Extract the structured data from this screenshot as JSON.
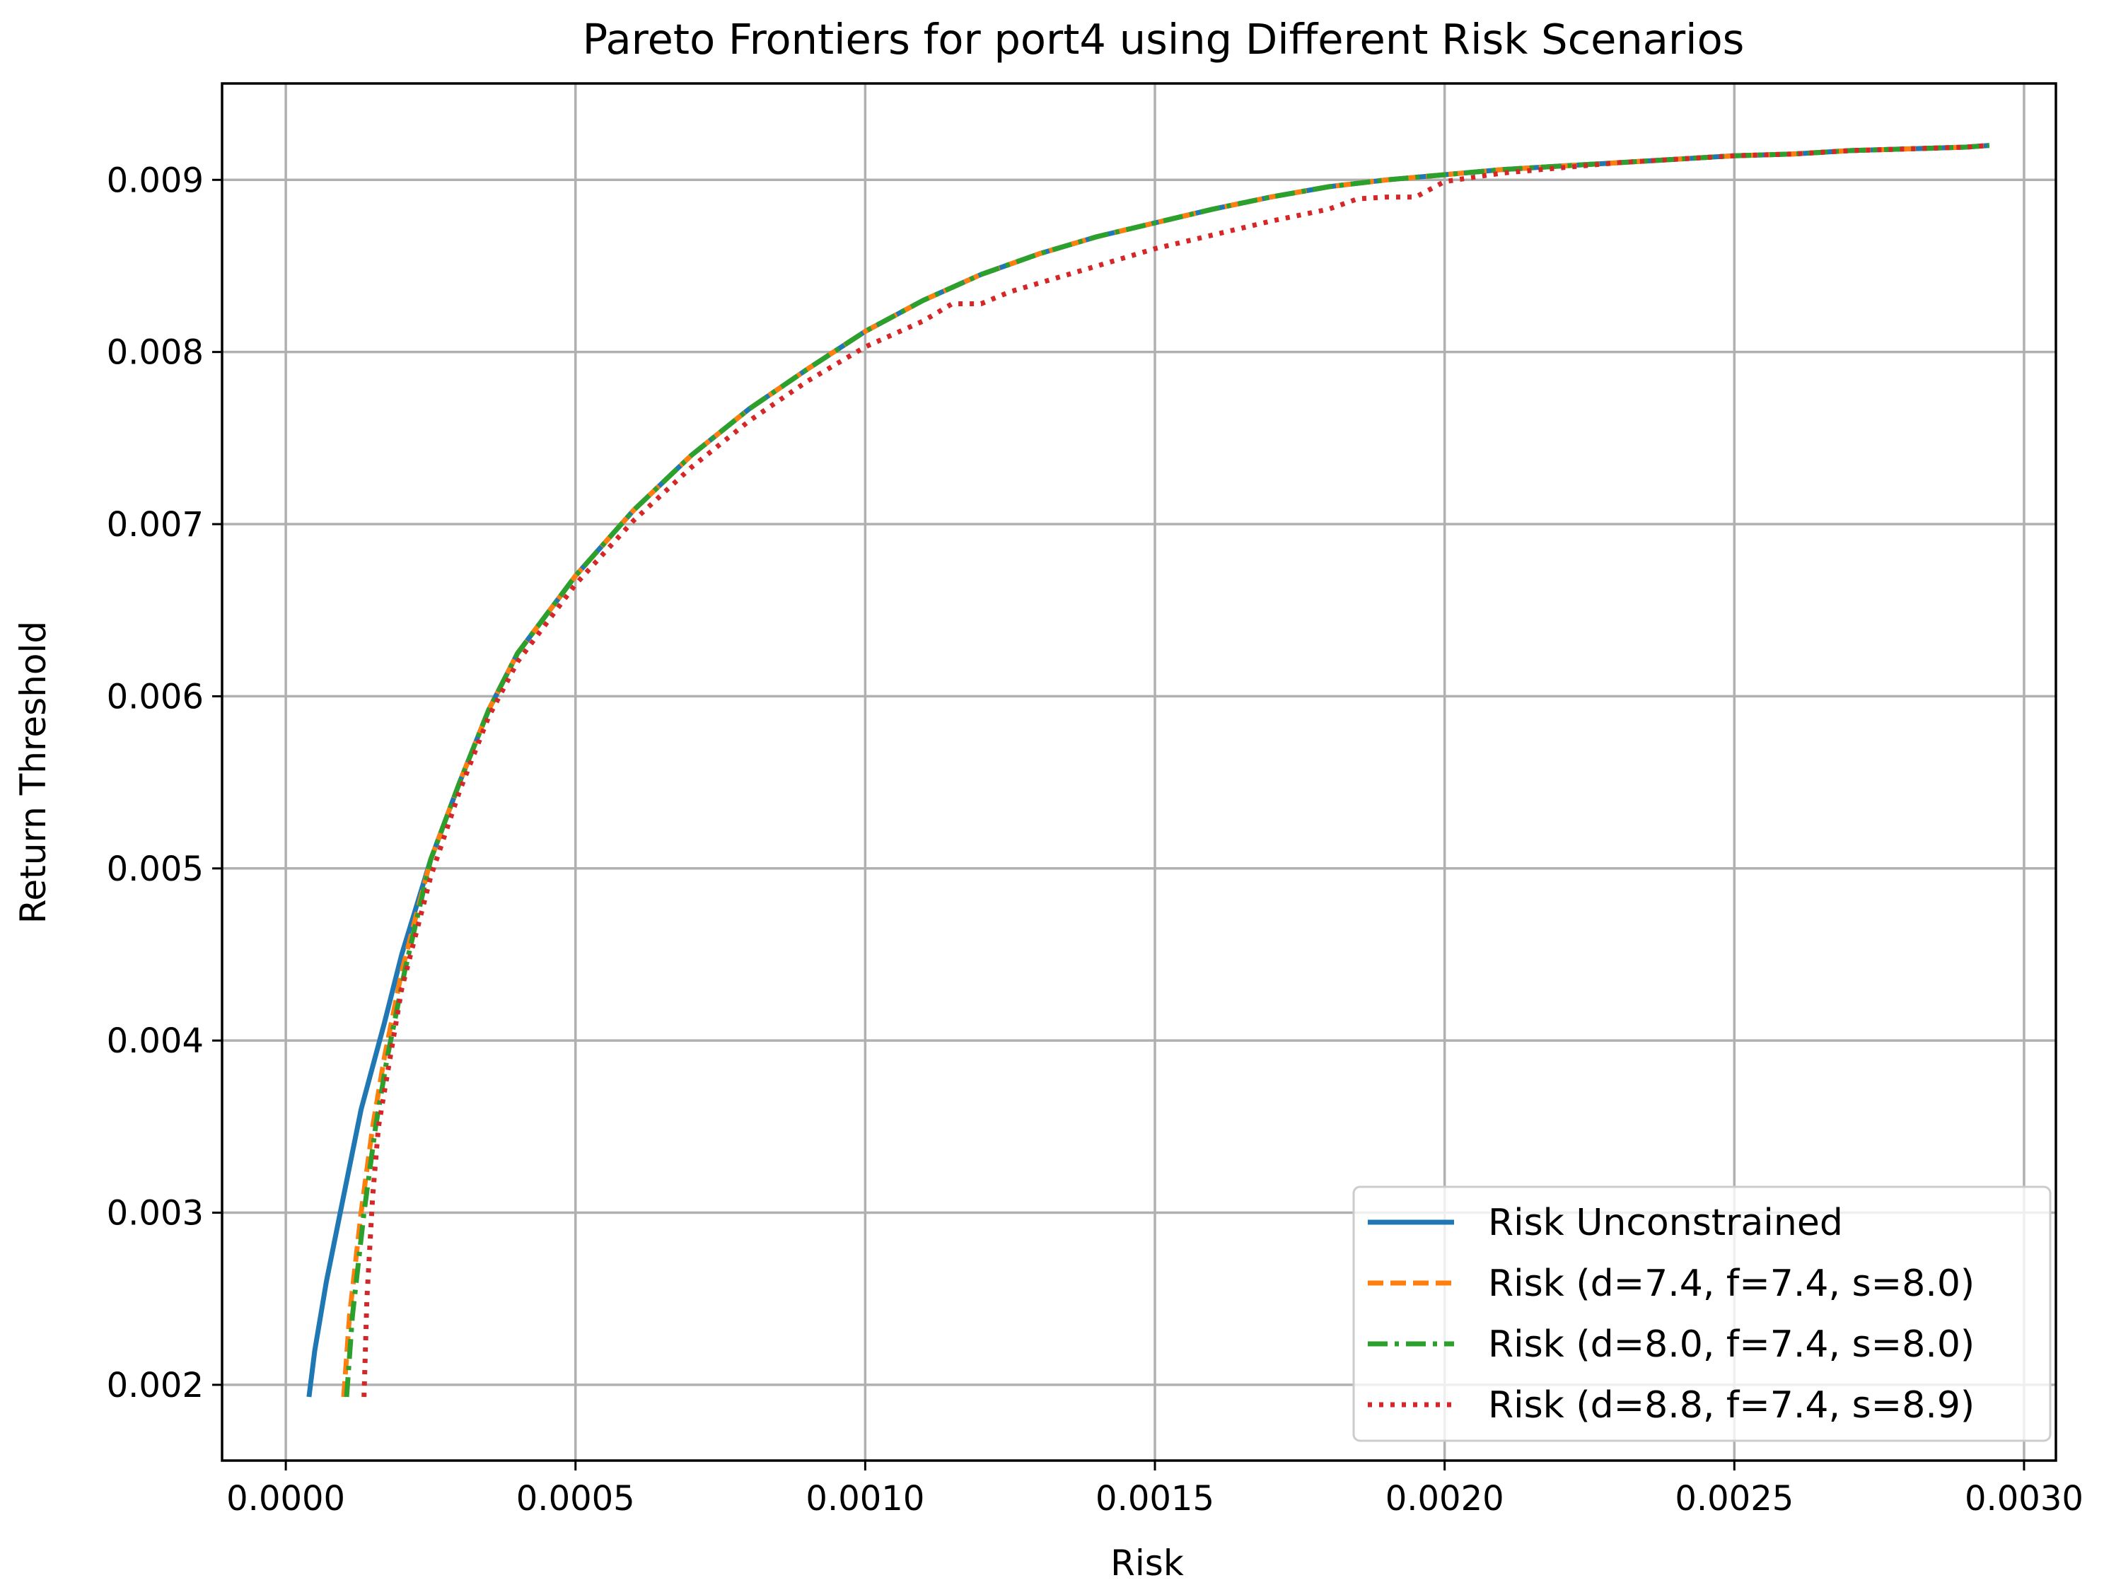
{
  "chart_data": {
    "type": "line",
    "title": "Pareto Frontiers for port4 using Different Risk Scenarios",
    "xlabel": "Risk",
    "ylabel": "Return Threshold",
    "xlim": [
      -0.00011,
      0.003055
    ],
    "ylim": [
      0.00156,
      0.00956
    ],
    "x_ticks": [
      0.0,
      0.0005,
      0.001,
      0.0015,
      0.002,
      0.0025,
      0.003
    ],
    "x_tick_labels": [
      "0.0000",
      "0.0005",
      "0.0010",
      "0.0015",
      "0.0020",
      "0.0025",
      "0.0030"
    ],
    "y_ticks": [
      0.002,
      0.003,
      0.004,
      0.005,
      0.006,
      0.007,
      0.008,
      0.009
    ],
    "y_tick_labels": [
      "0.002",
      "0.003",
      "0.004",
      "0.005",
      "0.006",
      "0.007",
      "0.008",
      "0.009"
    ],
    "grid": true,
    "legend_position": "lower right",
    "series": [
      {
        "name": "Risk Unconstrained",
        "color": "#1f77b4",
        "style": "solid",
        "x": [
          4e-05,
          5e-05,
          7e-05,
          0.0001,
          0.00013,
          0.00017,
          0.0002,
          0.00025,
          0.0003,
          0.00035,
          0.0004,
          0.0005,
          0.0006,
          0.0007,
          0.0008,
          0.0009,
          0.001,
          0.0011,
          0.0012,
          0.0013,
          0.0014,
          0.0015,
          0.0016,
          0.0017,
          0.0018,
          0.0019,
          0.002,
          0.0021,
          0.0022,
          0.0023,
          0.0024,
          0.0025,
          0.0026,
          0.0027,
          0.0028,
          0.0029,
          0.00294
        ],
        "y": [
          0.00193,
          0.0022,
          0.0026,
          0.0031,
          0.0036,
          0.0041,
          0.0045,
          0.00505,
          0.0055,
          0.00592,
          0.00625,
          0.0067,
          0.00708,
          0.0074,
          0.00767,
          0.0079,
          0.00812,
          0.0083,
          0.00845,
          0.00857,
          0.00867,
          0.00875,
          0.00883,
          0.0089,
          0.00896,
          0.009,
          0.00903,
          0.00906,
          0.00908,
          0.0091,
          0.00912,
          0.00914,
          0.00915,
          0.00917,
          0.00918,
          0.00919,
          0.0092
        ]
      },
      {
        "name": "Risk (d=7.4, f=7.4, s=8.0)",
        "color": "#ff7f0e",
        "style": "dashed",
        "x": [
          0.0001,
          0.00011,
          0.00013,
          0.00015,
          0.00017,
          0.0002,
          0.00025,
          0.0003,
          0.00035,
          0.0004,
          0.0005,
          0.0006,
          0.0007,
          0.0008,
          0.0009,
          0.001,
          0.0011,
          0.0012,
          0.0013,
          0.0014,
          0.0015,
          0.0016,
          0.0017,
          0.0018,
          0.0019,
          0.002,
          0.0021,
          0.0022,
          0.0023,
          0.0024,
          0.0025,
          0.0026,
          0.0027,
          0.0028,
          0.0029,
          0.00294
        ],
        "y": [
          0.00193,
          0.0024,
          0.003,
          0.0035,
          0.0039,
          0.0044,
          0.00505,
          0.0055,
          0.00592,
          0.00625,
          0.0067,
          0.00708,
          0.0074,
          0.00767,
          0.0079,
          0.00812,
          0.0083,
          0.00845,
          0.00857,
          0.00867,
          0.00875,
          0.00883,
          0.0089,
          0.00896,
          0.009,
          0.00903,
          0.00906,
          0.00908,
          0.0091,
          0.00912,
          0.00914,
          0.00915,
          0.00917,
          0.00918,
          0.00919,
          0.0092
        ]
      },
      {
        "name": "Risk (d=8.0, f=7.4, s=8.0)",
        "color": "#2ca02c",
        "style": "dashdot",
        "x": [
          0.000105,
          0.000115,
          0.000135,
          0.000155,
          0.000175,
          0.000205,
          0.00025,
          0.0003,
          0.00035,
          0.0004,
          0.0005,
          0.0006,
          0.0007,
          0.0008,
          0.0009,
          0.001,
          0.0011,
          0.0012,
          0.0013,
          0.0014,
          0.0015,
          0.0016,
          0.0017,
          0.0018,
          0.0019,
          0.002,
          0.0021,
          0.0022,
          0.0023,
          0.0024,
          0.0025,
          0.0026,
          0.0027,
          0.0028,
          0.0029,
          0.00294
        ],
        "y": [
          0.00193,
          0.0024,
          0.003,
          0.0035,
          0.0039,
          0.0044,
          0.00505,
          0.0055,
          0.00592,
          0.00625,
          0.0067,
          0.00708,
          0.0074,
          0.00767,
          0.0079,
          0.00812,
          0.0083,
          0.00845,
          0.00857,
          0.00867,
          0.00875,
          0.00883,
          0.0089,
          0.00896,
          0.009,
          0.00903,
          0.00906,
          0.00908,
          0.0091,
          0.00912,
          0.00914,
          0.00915,
          0.00917,
          0.00918,
          0.00919,
          0.0092
        ]
      },
      {
        "name": "Risk (d=8.8, f=7.4, s=8.9)",
        "color": "#d62728",
        "style": "dotted",
        "x": [
          0.000135,
          0.00014,
          0.00015,
          0.00016,
          0.00018,
          0.0002,
          0.00025,
          0.0003,
          0.00035,
          0.0004,
          0.0005,
          0.0006,
          0.0007,
          0.0008,
          0.0009,
          0.001,
          0.0011,
          0.00115,
          0.0012,
          0.00125,
          0.0013,
          0.0014,
          0.0015,
          0.0016,
          0.0017,
          0.0018,
          0.00185,
          0.0019,
          0.00195,
          0.002,
          0.0021,
          0.0022,
          0.0023,
          0.0024,
          0.0025,
          0.0026,
          0.0027,
          0.0028,
          0.0029,
          0.00294
        ],
        "y": [
          0.00193,
          0.0025,
          0.0031,
          0.0035,
          0.0039,
          0.0043,
          0.00495,
          0.00545,
          0.00588,
          0.0062,
          0.00665,
          0.00702,
          0.00733,
          0.0076,
          0.00783,
          0.00803,
          0.00818,
          0.00828,
          0.00828,
          0.00835,
          0.0084,
          0.0085,
          0.0086,
          0.00868,
          0.00876,
          0.00883,
          0.00889,
          0.0089,
          0.0089,
          0.00899,
          0.00904,
          0.00907,
          0.0091,
          0.00912,
          0.00914,
          0.00915,
          0.00917,
          0.00918,
          0.00919,
          0.0092
        ]
      }
    ]
  }
}
